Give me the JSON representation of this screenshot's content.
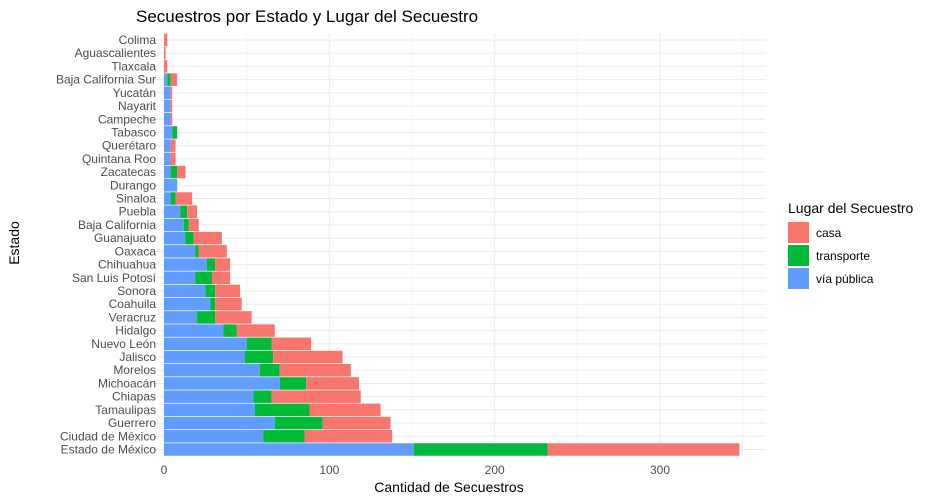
{
  "chart_data": {
    "type": "bar",
    "orientation": "horizontal",
    "stacked": true,
    "title": "Secuestros por Estado y Lugar del Secuestro",
    "xlabel": "Cantidad de Secuestros",
    "ylabel": "Estado",
    "xlim": [
      0,
      350
    ],
    "xticks": [
      0,
      100,
      200,
      300
    ],
    "grid": true,
    "legend": {
      "title": "Lugar del Secuestro",
      "position": "right"
    },
    "categories": [
      "Estado de México",
      "Ciudad de México",
      "Guerrero",
      "Tamaulipas",
      "Chiapas",
      "Michoacán",
      "Morelos",
      "Jalisco",
      "Nuevo León",
      "Hidalgo",
      "Veracruz",
      "Coahuila",
      "Sonora",
      "San Luis Potosí",
      "Chihuahua",
      "Oaxaca",
      "Guanajuato",
      "Baja California",
      "Puebla",
      "Sinaloa",
      "Durango",
      "Zacatecas",
      "Quintana Roo",
      "Querétaro",
      "Tabasco",
      "Campeche",
      "Nayarit",
      "Yucatán",
      "Baja California Sur",
      "Tlaxcala",
      "Aguascalientes",
      "Colima"
    ],
    "series": [
      {
        "name": "vía pública",
        "color": "#619CFF",
        "values": [
          151,
          60,
          67,
          55,
          54,
          70,
          58,
          49,
          50,
          36,
          20,
          28,
          25,
          19,
          26,
          19,
          13,
          12,
          10,
          4,
          8,
          4,
          4,
          4,
          5,
          4,
          4,
          4,
          2,
          0,
          0,
          0
        ]
      },
      {
        "name": "transporte",
        "color": "#00BA38",
        "values": [
          81,
          25,
          29,
          33,
          11,
          16,
          12,
          17,
          15,
          8,
          11,
          3,
          6,
          10,
          5,
          2,
          5,
          3,
          4,
          3,
          0,
          4,
          0,
          0,
          3,
          0,
          0,
          0,
          2,
          0,
          0,
          0
        ]
      },
      {
        "name": "casa",
        "color": "#F8766D",
        "values": [
          116,
          53,
          41,
          43,
          54,
          32,
          43,
          42,
          24,
          23,
          22,
          16,
          15,
          11,
          9,
          17,
          17,
          6,
          6,
          10,
          0,
          5,
          3,
          3,
          0,
          1,
          1,
          1,
          4,
          2,
          1,
          2
        ]
      }
    ]
  }
}
